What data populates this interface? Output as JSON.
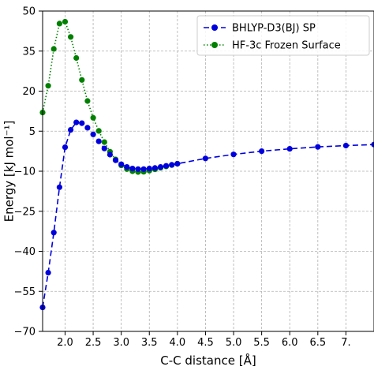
{
  "chart_data": {
    "type": "line",
    "title": "",
    "xlabel": "C-C distance [Å]",
    "ylabel": "Energy [kJ mol⁻¹]",
    "xlim": [
      1.6,
      7.5
    ],
    "ylim": [
      -70,
      50
    ],
    "xticks": [
      2.0,
      2.5,
      3.0,
      3.5,
      4.0,
      4.5,
      5.0,
      5.5,
      6.0,
      6.5,
      7.0
    ],
    "xtick_labels": [
      "2.0",
      "2.5",
      "3.0",
      "3.5",
      "4.0",
      "4.5",
      "5.0",
      "5.5",
      "6.0",
      "6.5",
      "7."
    ],
    "yticks": [
      50,
      35,
      20,
      5,
      -10,
      -25,
      -40,
      -55,
      -70
    ],
    "ytick_labels": [
      "50",
      "35",
      "20",
      "5",
      "−10",
      "−25",
      "−40",
      "−55",
      "−70"
    ],
    "grid": true,
    "legend_position": "top-right",
    "series": [
      {
        "name": "BHLYP-D3(BJ) SP",
        "color": "#0000dd",
        "line_style": "dashed",
        "marker": "circle",
        "x": [
          1.6,
          1.7,
          1.8,
          1.9,
          2.0,
          2.1,
          2.2,
          2.3,
          2.4,
          2.5,
          2.6,
          2.7,
          2.8,
          2.9,
          3.0,
          3.1,
          3.2,
          3.3,
          3.4,
          3.5,
          3.6,
          3.7,
          3.8,
          3.9,
          4.0,
          4.5,
          5.0,
          5.5,
          6.0,
          6.5,
          7.0,
          7.5
        ],
        "y": [
          -61,
          -48,
          -33,
          -16,
          -1,
          5.5,
          8.3,
          8.0,
          6.3,
          3.8,
          1.2,
          -1.5,
          -3.8,
          -5.9,
          -7.4,
          -8.4,
          -9.0,
          -9.2,
          -9.2,
          -9.0,
          -8.8,
          -8.4,
          -8.0,
          -7.6,
          -7.2,
          -5.2,
          -3.7,
          -2.5,
          -1.6,
          -0.9,
          -0.4,
          0.0
        ]
      },
      {
        "name": "HF-3c Frozen Surface",
        "color": "#008000",
        "line_style": "dotted",
        "marker": "circle",
        "x": [
          1.6,
          1.7,
          1.8,
          1.9,
          2.0,
          2.1,
          2.2,
          2.3,
          2.4,
          2.5,
          2.6,
          2.7,
          2.8,
          2.9,
          3.0,
          3.1,
          3.2,
          3.3,
          3.4,
          3.5,
          3.6,
          3.7,
          3.8,
          3.9,
          4.0
        ],
        "y": [
          12,
          22,
          35.8,
          45.3,
          46.0,
          40.3,
          32.4,
          24.2,
          16.3,
          10.0,
          5.1,
          0.9,
          -2.7,
          -5.6,
          -7.8,
          -9.2,
          -10.0,
          -10.3,
          -10.2,
          -9.8,
          -9.3,
          -8.7,
          -8.2,
          -7.7,
          -7.2
        ]
      }
    ]
  }
}
